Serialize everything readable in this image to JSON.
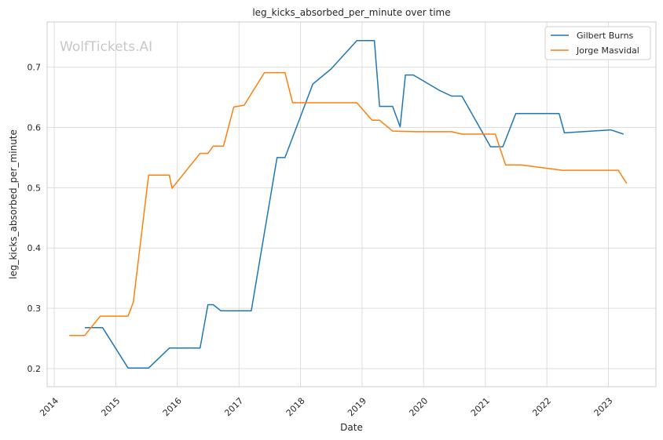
{
  "chart_data": {
    "type": "line",
    "title": "leg_kicks_absorbed_per_minute over time",
    "xlabel": "Date",
    "ylabel": "leg_kicks_absorbed_per_minute",
    "watermark": "WolfTickets.AI",
    "grid": true,
    "legend_position": "top-right",
    "xlim": [
      "2013-11-20",
      "2023-10-10"
    ],
    "ylim": [
      0.17,
      0.775
    ],
    "x_ticks": [
      "2014",
      "2015",
      "2016",
      "2017",
      "2018",
      "2019",
      "2020",
      "2021",
      "2022",
      "2023"
    ],
    "y_ticks": [
      "0.2",
      "0.3",
      "0.4",
      "0.5",
      "0.6",
      "0.7"
    ],
    "series": [
      {
        "name": "Gilbert Burns",
        "color": "#1f77b4",
        "points": [
          [
            "2014-07-01",
            0.268
          ],
          [
            "2014-10-15",
            0.268
          ],
          [
            "2015-03-15",
            0.201
          ],
          [
            "2015-07-15",
            0.201
          ],
          [
            "2015-11-15",
            0.234
          ],
          [
            "2016-05-15",
            0.234
          ],
          [
            "2016-07-01",
            0.306
          ],
          [
            "2016-08-01",
            0.306
          ],
          [
            "2016-09-15",
            0.296
          ],
          [
            "2017-03-15",
            0.296
          ],
          [
            "2017-08-15",
            0.55
          ],
          [
            "2017-10-01",
            0.55
          ],
          [
            "2018-03-15",
            0.672
          ],
          [
            "2018-07-01",
            0.697
          ],
          [
            "2018-12-01",
            0.744
          ],
          [
            "2019-03-15",
            0.744
          ],
          [
            "2019-04-15",
            0.635
          ],
          [
            "2019-07-01",
            0.635
          ],
          [
            "2019-08-15",
            0.601
          ],
          [
            "2019-09-15",
            0.687
          ],
          [
            "2019-11-01",
            0.687
          ],
          [
            "2020-04-01",
            0.662
          ],
          [
            "2020-06-15",
            0.652
          ],
          [
            "2020-08-15",
            0.652
          ],
          [
            "2021-02-01",
            0.568
          ],
          [
            "2021-04-15",
            0.568
          ],
          [
            "2021-07-01",
            0.623
          ],
          [
            "2022-03-15",
            0.623
          ],
          [
            "2022-04-15",
            0.591
          ],
          [
            "2023-01-15",
            0.596
          ],
          [
            "2023-04-01",
            0.589
          ]
        ]
      },
      {
        "name": "Jorge Masvidal",
        "color": "#ff7f0e",
        "points": [
          [
            "2014-04-01",
            0.255
          ],
          [
            "2014-07-01",
            0.255
          ],
          [
            "2014-10-01",
            0.287
          ],
          [
            "2015-03-15",
            0.287
          ],
          [
            "2015-04-15",
            0.31
          ],
          [
            "2015-07-15",
            0.521
          ],
          [
            "2015-11-15",
            0.521
          ],
          [
            "2015-12-01",
            0.499
          ],
          [
            "2016-05-15",
            0.557
          ],
          [
            "2016-07-01",
            0.557
          ],
          [
            "2016-08-01",
            0.569
          ],
          [
            "2016-10-01",
            0.569
          ],
          [
            "2016-12-01",
            0.634
          ],
          [
            "2017-02-01",
            0.637
          ],
          [
            "2017-06-01",
            0.691
          ],
          [
            "2017-10-01",
            0.691
          ],
          [
            "2017-11-15",
            0.641
          ],
          [
            "2018-12-01",
            0.641
          ],
          [
            "2019-03-01",
            0.612
          ],
          [
            "2019-04-15",
            0.612
          ],
          [
            "2019-07-01",
            0.594
          ],
          [
            "2019-11-15",
            0.593
          ],
          [
            "2020-06-15",
            0.593
          ],
          [
            "2020-08-15",
            0.589
          ],
          [
            "2021-03-01",
            0.589
          ],
          [
            "2021-05-01",
            0.538
          ],
          [
            "2021-08-01",
            0.538
          ],
          [
            "2022-04-01",
            0.529
          ],
          [
            "2023-03-01",
            0.529
          ],
          [
            "2023-04-20",
            0.507
          ]
        ]
      }
    ]
  }
}
